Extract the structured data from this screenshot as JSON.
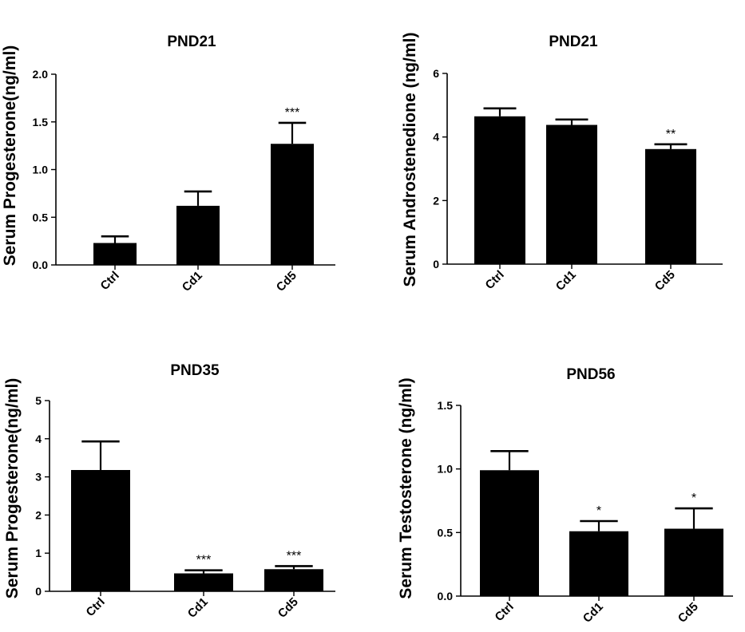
{
  "chart_data": [
    {
      "type": "bar",
      "title": "PND21",
      "ylabel": "Serum Progesterone(ng/ml)",
      "categories": [
        "Ctrl",
        "Cd1",
        "Cd5"
      ],
      "values": [
        0.23,
        0.62,
        1.27
      ],
      "errors": [
        0.07,
        0.15,
        0.22
      ],
      "significance": [
        "",
        "",
        "***"
      ],
      "ylim": [
        0,
        2.0
      ],
      "yticks": [
        "0.0",
        "0.5",
        "1.0",
        "1.5",
        "2.0"
      ],
      "ytick_values": [
        0,
        0.5,
        1.0,
        1.5,
        2.0
      ]
    },
    {
      "type": "bar",
      "title": "PND21",
      "ylabel": "Serum Androstenedione (ng/ml)",
      "categories": [
        "Ctrl",
        "Cd1",
        "Cd5"
      ],
      "values": [
        4.65,
        4.38,
        3.62
      ],
      "errors": [
        0.25,
        0.17,
        0.15
      ],
      "significance": [
        "",
        "",
        "**"
      ],
      "ylim": [
        0,
        6
      ],
      "yticks": [
        "0",
        "2",
        "4",
        "6"
      ],
      "ytick_values": [
        0,
        2,
        4,
        6
      ]
    },
    {
      "type": "bar",
      "title": "PND35",
      "ylabel": "Serum Progesterone(ng/ml)",
      "categories": [
        "Ctrl",
        "Cd1",
        "Cd5"
      ],
      "values": [
        3.18,
        0.47,
        0.58
      ],
      "errors": [
        0.75,
        0.08,
        0.08
      ],
      "significance": [
        "",
        "***",
        "***"
      ],
      "ylim": [
        0,
        5
      ],
      "yticks": [
        "0",
        "1",
        "2",
        "3",
        "4",
        "5"
      ],
      "ytick_values": [
        0,
        1,
        2,
        3,
        4,
        5
      ]
    },
    {
      "type": "bar",
      "title": "PND56",
      "ylabel": "Serum Testosterone (ng/ml)",
      "categories": [
        "Ctrl",
        "Cd1",
        "Cd5"
      ],
      "values": [
        0.99,
        0.51,
        0.53
      ],
      "errors": [
        0.15,
        0.08,
        0.16
      ],
      "significance": [
        "",
        "*",
        "*"
      ],
      "ylim": [
        0,
        1.5
      ],
      "yticks": [
        "0.0",
        "0.5",
        "1.0",
        "1.5"
      ],
      "ytick_values": [
        0,
        0.5,
        1.0,
        1.5
      ]
    }
  ]
}
